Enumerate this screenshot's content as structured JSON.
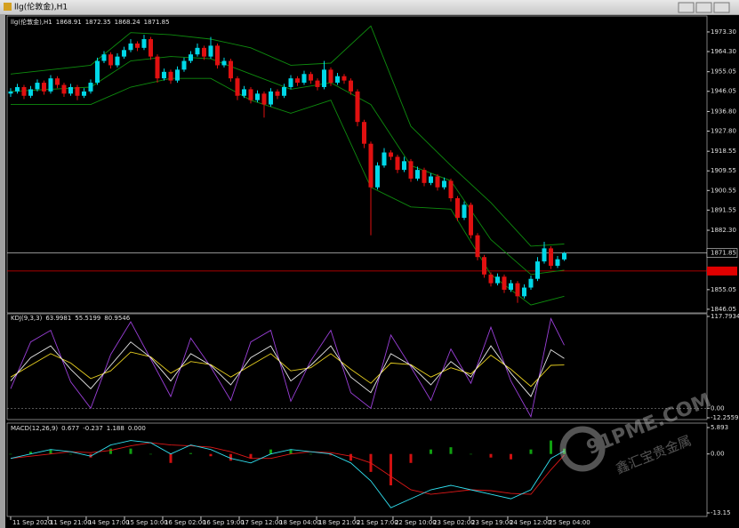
{
  "window": {
    "title": "llg(伦敦金),H1"
  },
  "watermark": {
    "site": "91PME.COM",
    "name": "鑫汇宝贵金属"
  },
  "chart_data": {
    "type": "candlestick",
    "symbol": "llg(伦敦金),H1",
    "up_color": "#00d8e8",
    "down_color": "#e01010",
    "candles": [
      [
        1945,
        1947.5,
        1943.5,
        1946
      ],
      [
        1946,
        1949.5,
        1945,
        1948
      ],
      [
        1948,
        1949,
        1942.5,
        1944
      ],
      [
        1944,
        1948.5,
        1943,
        1947
      ],
      [
        1947,
        1951.5,
        1946,
        1950
      ],
      [
        1950,
        1951,
        1944.5,
        1946
      ],
      [
        1946,
        1953.5,
        1945,
        1952
      ],
      [
        1952,
        1953,
        1947.5,
        1949
      ],
      [
        1949,
        1950,
        1943.5,
        1945
      ],
      [
        1945,
        1949.5,
        1944,
        1948
      ],
      [
        1948,
        1949,
        1942,
        1944
      ],
      [
        1944,
        1947.5,
        1943,
        1946
      ],
      [
        1946,
        1951.5,
        1945,
        1950
      ],
      [
        1950,
        1961.5,
        1949,
        1960
      ],
      [
        1960,
        1964.5,
        1959,
        1963
      ],
      [
        1963,
        1964,
        1956.5,
        1958
      ],
      [
        1958,
        1963.5,
        1957,
        1962
      ],
      [
        1962,
        1966.5,
        1961,
        1965
      ],
      [
        1965,
        1970,
        1964,
        1968
      ],
      [
        1968,
        1969,
        1964.5,
        1966
      ],
      [
        1966,
        1972,
        1965,
        1970
      ],
      [
        1970,
        1971,
        1960.5,
        1962
      ],
      [
        1962,
        1963,
        1950,
        1952
      ],
      [
        1952,
        1956.5,
        1951,
        1955
      ],
      [
        1955,
        1956,
        1949.5,
        1951
      ],
      [
        1951,
        1957.5,
        1950,
        1956
      ],
      [
        1956,
        1961.5,
        1955,
        1960
      ],
      [
        1960,
        1964.5,
        1959,
        1963
      ],
      [
        1963,
        1968,
        1962,
        1966
      ],
      [
        1966,
        1967,
        1960.5,
        1962
      ],
      [
        1962,
        1971,
        1961,
        1967
      ],
      [
        1967,
        1968,
        1956.5,
        1958
      ],
      [
        1958,
        1961.5,
        1957,
        1960
      ],
      [
        1960,
        1961,
        1950.5,
        1952
      ],
      [
        1952,
        1953,
        1942,
        1944
      ],
      [
        1944,
        1948.5,
        1943,
        1947
      ],
      [
        1947,
        1948,
        1940.5,
        1942
      ],
      [
        1942,
        1946.5,
        1941,
        1945
      ],
      [
        1945,
        1946,
        1934,
        1940
      ],
      [
        1940,
        1947.5,
        1939,
        1946
      ],
      [
        1946,
        1947,
        1942.5,
        1944
      ],
      [
        1944,
        1949.5,
        1943,
        1948
      ],
      [
        1948,
        1953.5,
        1947,
        1952
      ],
      [
        1952,
        1953,
        1948.5,
        1950
      ],
      [
        1950,
        1955.5,
        1949,
        1954
      ],
      [
        1954,
        1955,
        1949.5,
        1951
      ],
      [
        1951,
        1952,
        1946.5,
        1948
      ],
      [
        1948,
        1960,
        1947,
        1956
      ],
      [
        1956,
        1957,
        1948.5,
        1950
      ],
      [
        1950,
        1954.5,
        1949,
        1953
      ],
      [
        1953,
        1954,
        1949.5,
        1951
      ],
      [
        1951,
        1952,
        1944.5,
        1946
      ],
      [
        1946,
        1947,
        1930,
        1932
      ],
      [
        1932,
        1933,
        1920,
        1922
      ],
      [
        1922,
        1923,
        1880,
        1902
      ],
      [
        1902,
        1913.5,
        1901,
        1912
      ],
      [
        1912,
        1920,
        1911,
        1918
      ],
      [
        1918,
        1919,
        1914.5,
        1916
      ],
      [
        1916,
        1917,
        1908.5,
        1910
      ],
      [
        1910,
        1916,
        1909,
        1914
      ],
      [
        1914,
        1915,
        1904.5,
        1906
      ],
      [
        1906,
        1911.5,
        1905,
        1910
      ],
      [
        1910,
        1911,
        1902.5,
        1904
      ],
      [
        1904,
        1908.5,
        1903,
        1907
      ],
      [
        1907,
        1908,
        1900.5,
        1902
      ],
      [
        1902,
        1906.5,
        1901,
        1905
      ],
      [
        1905,
        1906,
        1895.5,
        1897
      ],
      [
        1897,
        1898,
        1886.5,
        1888
      ],
      [
        1888,
        1895.5,
        1887,
        1894
      ],
      [
        1894,
        1895,
        1878.5,
        1880
      ],
      [
        1880,
        1881,
        1868.5,
        1870
      ],
      [
        1870,
        1871,
        1860.5,
        1862
      ],
      [
        1862,
        1863,
        1856.5,
        1858
      ],
      [
        1858,
        1862.5,
        1857,
        1861
      ],
      [
        1861,
        1862,
        1853.5,
        1855
      ],
      [
        1855,
        1859.5,
        1854,
        1858
      ],
      [
        1858,
        1859,
        1849,
        1852
      ],
      [
        1852,
        1857.5,
        1851,
        1856
      ],
      [
        1856,
        1861.5,
        1855,
        1860
      ],
      [
        1860,
        1870,
        1859,
        1868
      ],
      [
        1868,
        1877,
        1867,
        1874
      ],
      [
        1874,
        1875,
        1864.5,
        1866
      ],
      [
        1866,
        1870.5,
        1865,
        1869
      ],
      [
        1868.91,
        1872.35,
        1868.24,
        1871.85
      ]
    ],
    "bands": {
      "color": "#0e8c0e",
      "x": [
        0,
        6,
        12,
        18,
        24,
        30,
        36,
        42,
        48,
        54,
        60,
        66,
        72,
        78,
        83
      ],
      "upper": [
        1954,
        1956,
        1958,
        1973,
        1972,
        1970,
        1966,
        1958,
        1959,
        1976,
        1930,
        1912,
        1895,
        1875,
        1876
      ],
      "middle": [
        1946,
        1947,
        1948,
        1960,
        1962,
        1961,
        1954,
        1947,
        1950,
        1940,
        1912,
        1905,
        1878,
        1862,
        1864
      ],
      "lower": [
        1940,
        1940,
        1940,
        1948,
        1952,
        1952,
        1942,
        1936,
        1942,
        1902,
        1893,
        1892,
        1862,
        1848,
        1852
      ]
    },
    "current_color": "#c0c0c0",
    "level": {
      "value": 1863.6,
      "color": "#e00000"
    },
    "xlim": [
      -0.53,
      104.4
    ],
    "ylim": [
      1845.2,
      1979.8
    ],
    "yticks": [
      {
        "value": 1973.3,
        "label": "1973.30"
      },
      {
        "value": 1964.3,
        "label": "1964.30"
      },
      {
        "value": 1955.05,
        "label": "1955.05"
      },
      {
        "value": 1946.05,
        "label": "1946.05"
      },
      {
        "value": 1936.8,
        "label": "1936.80"
      },
      {
        "value": 1927.8,
        "label": "1927.80"
      },
      {
        "value": 1918.55,
        "label": "1918.55"
      },
      {
        "value": 1909.55,
        "label": "1909.55"
      },
      {
        "value": 1900.55,
        "label": "1900.55"
      },
      {
        "value": 1891.55,
        "label": "1891.55"
      },
      {
        "value": 1882.3,
        "label": "1882.30"
      },
      {
        "value": 1855.05,
        "label": "1855.05"
      },
      {
        "value": 1846.05,
        "label": "1846.05"
      }
    ],
    "xticks": [
      {
        "value": 0,
        "label": "11 Sep 2020"
      },
      {
        "value": 5.6,
        "label": "11 Sep 21:00"
      },
      {
        "value": 11.33,
        "label": "14 Sep 17:00"
      },
      {
        "value": 17.07,
        "label": "15 Sep 10:00"
      },
      {
        "value": 22.8,
        "label": "16 Sep 02:00"
      },
      {
        "value": 28.53,
        "label": "16 Sep 19:00"
      },
      {
        "value": 34.27,
        "label": "17 Sep 12:00"
      },
      {
        "value": 40,
        "label": "18 Sep 04:00"
      },
      {
        "value": 45.87,
        "label": "18 Sep 21:00"
      },
      {
        "value": 51.6,
        "label": "21 Sep 17:00"
      },
      {
        "value": 57.33,
        "label": "22 Sep 10:00"
      },
      {
        "value": 63.07,
        "label": "23 Sep 02:00"
      },
      {
        "value": 68.8,
        "label": "23 Sep 19:00"
      },
      {
        "value": 74.53,
        "label": "24 Sep 12:00"
      },
      {
        "value": 80.4,
        "label": "25 Sep 04:00"
      }
    ],
    "kdj": {
      "title": "KDJ(9,3,3)",
      "x": [
        0,
        3,
        6,
        9,
        12,
        15,
        18,
        21,
        24,
        27,
        30,
        33,
        36,
        39,
        42,
        45,
        48,
        51,
        54,
        57,
        60,
        63,
        66,
        69,
        72,
        75,
        78,
        81,
        83
      ],
      "k": [
        35,
        65,
        80,
        50,
        25,
        55,
        85,
        65,
        35,
        70,
        55,
        30,
        65,
        80,
        35,
        55,
        80,
        40,
        20,
        70,
        55,
        30,
        60,
        40,
        80,
        45,
        15,
        75,
        63.9981
      ],
      "d": [
        40,
        55,
        70,
        58,
        38,
        48,
        72,
        66,
        45,
        60,
        56,
        40,
        55,
        70,
        48,
        52,
        70,
        50,
        32,
        58,
        56,
        40,
        52,
        44,
        68,
        50,
        28,
        55,
        55.5199
      ],
      "j": [
        25,
        85,
        100,
        34,
        0,
        69,
        111,
        63,
        15,
        90,
        53,
        10,
        85,
        100,
        9,
        61,
        100,
        20,
        0,
        94,
        53,
        10,
        76,
        32,
        104,
        35,
        -11,
        115,
        80.9546
      ],
      "k_color": "#e8e8e8",
      "d_color": "#e8d020",
      "j_color": "#9a3fd8",
      "ylim": [
        -12.2559,
        117.7934
      ],
      "yticks": [
        117.7934,
        {
          "value": 0,
          "label": "0.00"
        },
        -12.2559
      ]
    },
    "macd": {
      "title": "MACD(12,26,9)",
      "x": [
        0,
        3,
        6,
        9,
        12,
        15,
        18,
        21,
        24,
        27,
        30,
        33,
        36,
        39,
        42,
        45,
        48,
        51,
        54,
        57,
        60,
        63,
        66,
        69,
        72,
        75,
        78,
        81,
        83
      ],
      "macd": [
        -1,
        0,
        1,
        0.5,
        -0.5,
        2,
        3,
        2.5,
        0,
        2,
        1,
        -1,
        -2,
        0,
        1,
        0.5,
        0,
        -2,
        -6,
        -12,
        -10,
        -8,
        -7,
        -8,
        -9,
        -10,
        -8,
        -1,
        0.677
      ],
      "signal": [
        -1,
        -0.5,
        0,
        0.5,
        0.3,
        0.8,
        1.8,
        2.5,
        2,
        1.8,
        1.5,
        0.5,
        -1,
        -1,
        0,
        0.5,
        0.3,
        -0.5,
        -2,
        -5,
        -8,
        -9,
        -8.5,
        -8,
        -8.2,
        -8.8,
        -9,
        -3.5,
        -0.237
      ],
      "histogram": [
        0,
        0.5,
        1,
        0,
        -0.8,
        1.2,
        1.2,
        0,
        -2,
        0.2,
        -0.5,
        -1.5,
        -1,
        1,
        1,
        0,
        -0.3,
        -1.5,
        -4,
        -7,
        -2,
        1,
        1.5,
        0,
        -0.8,
        -1.2,
        1,
        3,
        1.188
      ],
      "extra": {
        "value": 0,
        "label": "0.000"
      },
      "macd_color": "#30e0f0",
      "signal_color": "#e01818",
      "hist_up_color": "#10a010",
      "hist_down_color": "#d01010",
      "ylim": [
        -13.15,
        5.893
      ],
      "yticks": [
        5.893,
        {
          "value": 0,
          "label": "0.00"
        },
        -13.15
      ]
    }
  }
}
